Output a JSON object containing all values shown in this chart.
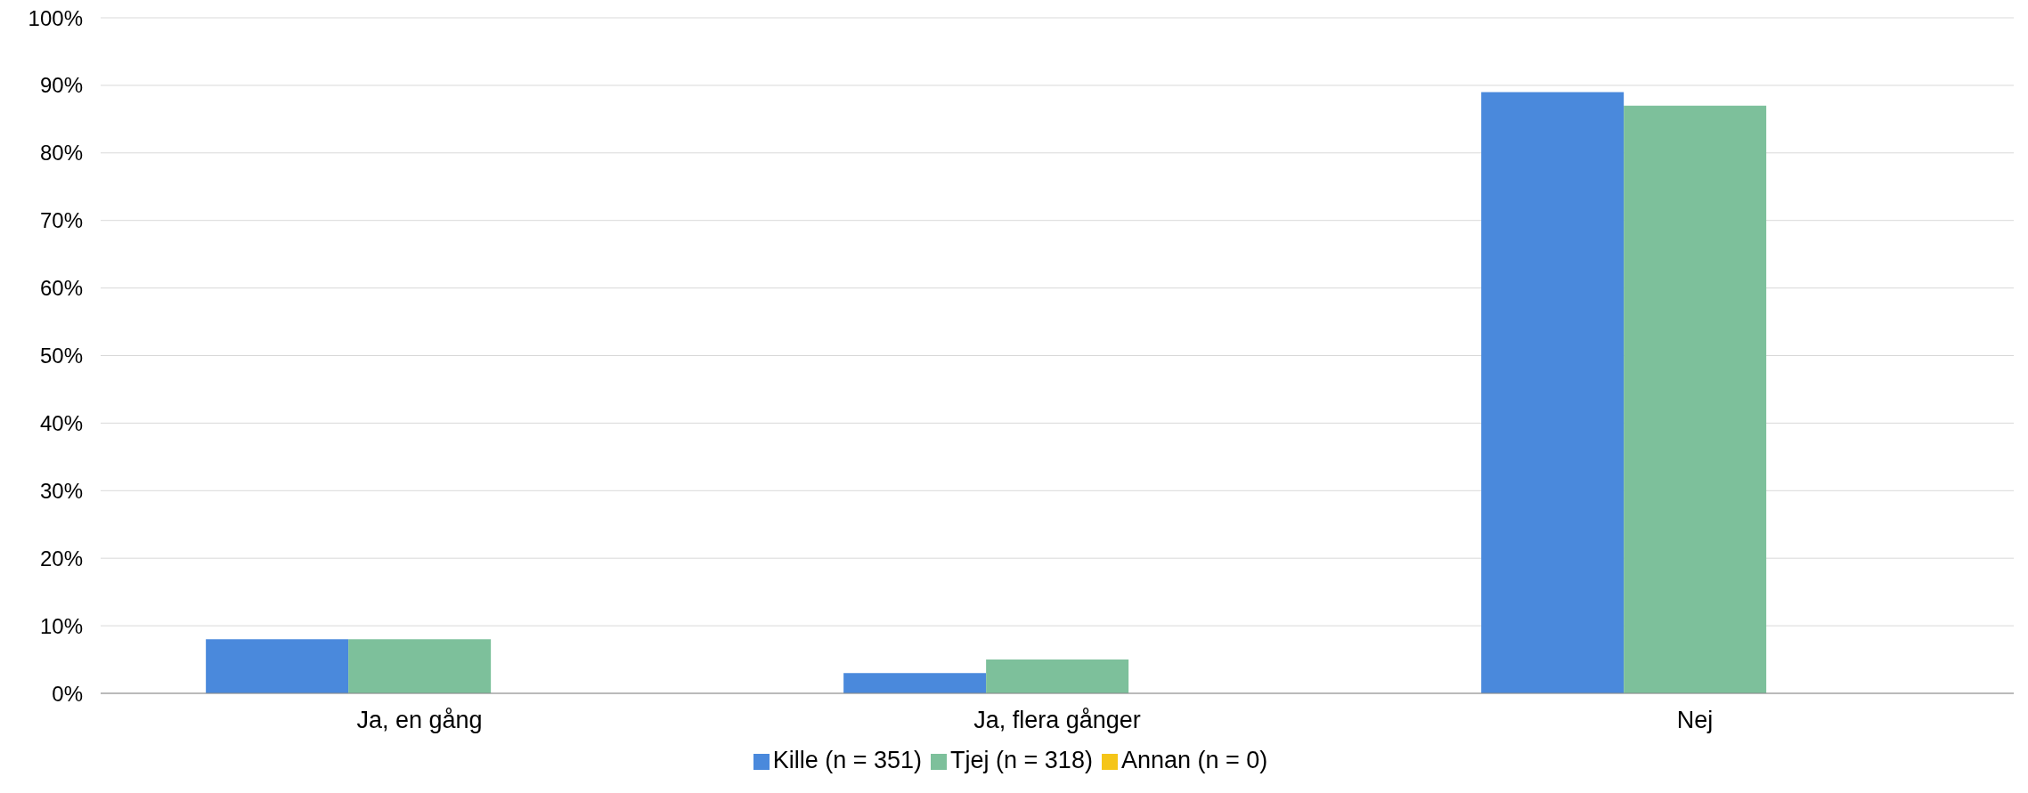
{
  "chart_data": {
    "type": "bar",
    "categories": [
      "Ja, en gång",
      "Ja, flera gånger",
      "Nej"
    ],
    "series": [
      {
        "name": "Kille (n = 351)",
        "color": "#4a89dc",
        "values": [
          8,
          3,
          89
        ]
      },
      {
        "name": "Tjej (n = 318)",
        "color": "#7dc09b",
        "values": [
          8,
          5,
          87
        ]
      },
      {
        "name": "Annan (n = 0)",
        "color": "#f5c518",
        "values": [
          0,
          0,
          0
        ]
      }
    ],
    "ylim": [
      0,
      100
    ],
    "yticks": [
      {
        "value": 0,
        "label": "0%"
      },
      {
        "value": 10,
        "label": "10%"
      },
      {
        "value": 20,
        "label": "20%"
      },
      {
        "value": 30,
        "label": "30%"
      },
      {
        "value": 40,
        "label": "40%"
      },
      {
        "value": 50,
        "label": "50%"
      },
      {
        "value": 60,
        "label": "60%"
      },
      {
        "value": 70,
        "label": "70%"
      },
      {
        "value": 80,
        "label": "80%"
      },
      {
        "value": 90,
        "label": "90%"
      },
      {
        "value": 100,
        "label": "100%"
      }
    ],
    "grid": "y",
    "legend": "bottom"
  }
}
